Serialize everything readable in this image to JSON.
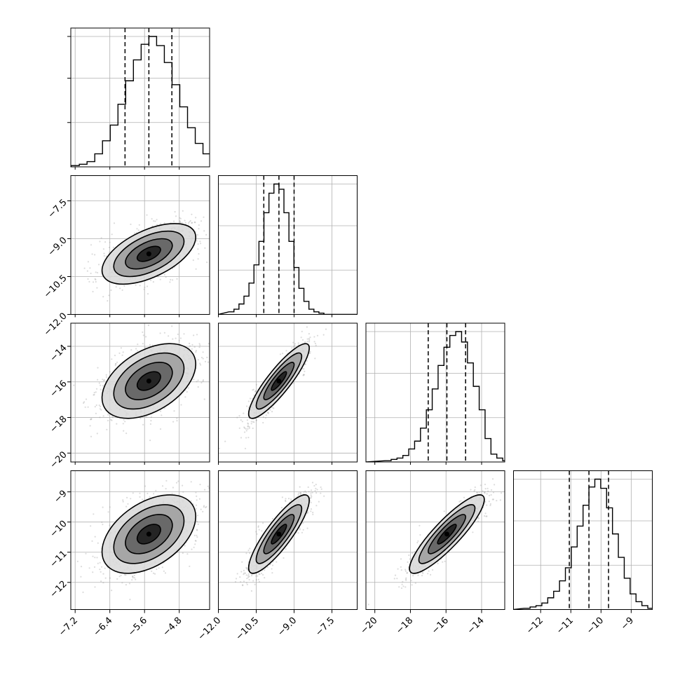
{
  "chart_data": {
    "type": "corner",
    "title": "",
    "parameters": [
      {
        "id": "p0",
        "label": "",
        "range": [
          -7.3,
          -4.1
        ],
        "ticks": [
          -7.2,
          -6.4,
          -5.6,
          -4.8
        ],
        "tick_labels": [
          "−7.2",
          "−6.4",
          "−5.6",
          "−4.8"
        ],
        "quantiles": [
          -6.05,
          -5.5,
          -4.97
        ],
        "peak": -5.5
      },
      {
        "id": "p1",
        "label": "",
        "range": [
          -12.0,
          -6.5
        ],
        "ticks": [
          -12.0,
          -10.5,
          -9.0,
          -7.5
        ],
        "tick_labels": [
          "−12.0",
          "−10.5",
          "−9.0",
          "−7.5"
        ],
        "quantiles": [
          -10.2,
          -9.6,
          -9.0
        ],
        "peak": -9.6
      },
      {
        "id": "p2",
        "label": "",
        "range": [
          -20.5,
          -12.7
        ],
        "ticks": [
          -20,
          -18,
          -16,
          -14
        ],
        "tick_labels": [
          "−20",
          "−18",
          "−16",
          "−14"
        ],
        "quantiles": [
          -17.0,
          -15.95,
          -14.9
        ],
        "peak": -15.95
      },
      {
        "id": "p3",
        "label": "",
        "range": [
          -12.9,
          -8.3
        ],
        "ticks": [
          -12,
          -11,
          -10,
          -9
        ],
        "tick_labels": [
          "−12",
          "−11",
          "−10",
          "−9"
        ],
        "quantiles": [
          -11.05,
          -10.4,
          -9.75
        ],
        "peak": -10.4
      }
    ],
    "correlations": {
      "1,0": 0.55,
      "2,0": 0.45,
      "2,1": 0.88,
      "3,0": 0.45,
      "3,1": 0.86,
      "3,2": 0.88
    },
    "histograms": [
      {
        "param": "p0",
        "counts": [
          0.01,
          0.02,
          0.04,
          0.1,
          0.2,
          0.32,
          0.48,
          0.66,
          0.82,
          0.94,
          1.0,
          0.93,
          0.8,
          0.63,
          0.46,
          0.3,
          0.18,
          0.1,
          0.05,
          0.02
        ]
      },
      {
        "param": "p1",
        "counts": [
          0.02,
          0.04,
          0.08,
          0.14,
          0.24,
          0.38,
          0.56,
          0.78,
          0.93,
          1.0,
          0.96,
          0.78,
          0.56,
          0.36,
          0.2,
          0.1,
          0.04,
          0.02,
          0.01,
          0.0
        ]
      },
      {
        "param": "p2",
        "counts": [
          0.01,
          0.02,
          0.03,
          0.05,
          0.1,
          0.16,
          0.26,
          0.4,
          0.56,
          0.74,
          0.88,
          0.97,
          1.0,
          0.92,
          0.76,
          0.58,
          0.4,
          0.18,
          0.06,
          0.03,
          0.01
        ]
      },
      {
        "param": "p3",
        "counts": [
          0.01,
          0.02,
          0.03,
          0.05,
          0.09,
          0.14,
          0.22,
          0.32,
          0.48,
          0.64,
          0.8,
          0.94,
          1.0,
          0.93,
          0.78,
          0.58,
          0.4,
          0.24,
          0.12,
          0.06,
          0.03,
          0.01
        ]
      }
    ],
    "histogram_gridlines": [
      0.34,
      0.68,
      1.0
    ],
    "contour_levels_sigma": [
      0.5,
      1.0,
      1.5,
      2.0
    ],
    "grid": true,
    "colors": {
      "contour": "#000000",
      "scatter": "#9a9a9a",
      "grid": "#b0b0b0",
      "axes": "#000000",
      "background": "#ffffff"
    }
  }
}
